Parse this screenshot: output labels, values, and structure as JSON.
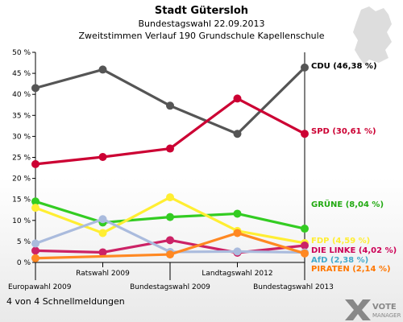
{
  "chart_data": {
    "type": "line",
    "title": "Stadt Gütersloh",
    "subtitle1": "Bundestagswahl 22.09.2013",
    "subtitle2": "Zweitstimmen Verlauf 190 Grundschule Kapellenschule",
    "ylim": [
      0,
      50
    ],
    "yticks": [
      "0 %",
      "5 %",
      "10 %",
      "15 %",
      "20 %",
      "25 %",
      "30 %",
      "35 %",
      "40 %",
      "45 %",
      "50 %"
    ],
    "categories": [
      "Europawahl 2009",
      "Ratswahl 2009",
      "Bundestagswahl 2009",
      "Landtagswahl 2012",
      "Bundestagswahl 2013"
    ],
    "grid": false,
    "series": [
      {
        "name": "CDU",
        "color": "#555555",
        "values": [
          41.5,
          45.9,
          37.3,
          30.6,
          46.38
        ],
        "label": "CDU (46,38 %)",
        "label_color": "#000000"
      },
      {
        "name": "SPD",
        "color": "#cc0033",
        "values": [
          23.4,
          25.1,
          27.1,
          39.0,
          30.61
        ],
        "label": "SPD (30,61 %)",
        "label_color": "#cc0033"
      },
      {
        "name": "GRÜNE",
        "color": "#33cc22",
        "values": [
          14.5,
          9.5,
          10.8,
          11.6,
          8.04
        ],
        "label": "GRÜNE (8,04 %)",
        "label_color": "#22aa11"
      },
      {
        "name": "FDP",
        "color": "#ffee33",
        "values": [
          13.0,
          7.0,
          15.5,
          7.5,
          4.6
        ],
        "label": "FDP (4,59 %)",
        "label_color": "#ffee33"
      },
      {
        "name": "DIE LINKE",
        "color": "#cc2266",
        "values": [
          2.8,
          2.4,
          5.3,
          2.3,
          4.02
        ],
        "label": "DIE LINKE (4,02 %)",
        "label_color": "#cc0055"
      },
      {
        "name": "AfD",
        "color": "#aabbdd",
        "values": [
          4.5,
          10.3,
          2.5,
          2.6,
          2.38
        ],
        "label": "AfD (2,38 %)",
        "label_color": "#44aacc"
      },
      {
        "name": "PIRATEN",
        "color": "#ff8822",
        "values": [
          1.0,
          null,
          1.9,
          7.0,
          2.14
        ],
        "label": "PIRATEN (2,14 %)",
        "label_color": "#ff7700"
      }
    ]
  },
  "footer_text": "4 von 4 Schnellmeldungen",
  "logo_text": "VOTE MANAGER",
  "colors": {
    "axis": "#000000",
    "map": "#dddddd"
  }
}
